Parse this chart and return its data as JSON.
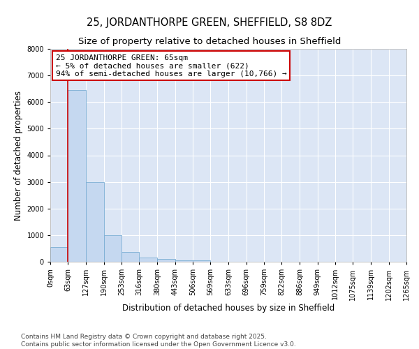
{
  "title1": "25, JORDANTHORPE GREEN, SHEFFIELD, S8 8DZ",
  "title2": "Size of property relative to detached houses in Sheffield",
  "xlabel": "Distribution of detached houses by size in Sheffield",
  "ylabel": "Number of detached properties",
  "bin_labels": [
    "0sqm",
    "63sqm",
    "127sqm",
    "190sqm",
    "253sqm",
    "316sqm",
    "380sqm",
    "443sqm",
    "506sqm",
    "569sqm",
    "633sqm",
    "696sqm",
    "759sqm",
    "822sqm",
    "886sqm",
    "949sqm",
    "1012sqm",
    "1075sqm",
    "1139sqm",
    "1202sqm",
    "1265sqm"
  ],
  "bin_edges": [
    0,
    63,
    127,
    190,
    253,
    316,
    380,
    443,
    506,
    569,
    633,
    696,
    759,
    822,
    886,
    949,
    1012,
    1075,
    1139,
    1202,
    1265
  ],
  "bar_values": [
    550,
    6450,
    3000,
    1000,
    360,
    155,
    105,
    65,
    45,
    0,
    0,
    0,
    0,
    0,
    0,
    0,
    0,
    0,
    0,
    0
  ],
  "bar_color": "#c5d8f0",
  "bar_edge_color": "#7aadd4",
  "property_line_x": 63,
  "property_line_color": "#cc0000",
  "ylim": [
    0,
    8000
  ],
  "yticks": [
    0,
    1000,
    2000,
    3000,
    4000,
    5000,
    6000,
    7000,
    8000
  ],
  "annotation_text": "25 JORDANTHORPE GREEN: 65sqm\n← 5% of detached houses are smaller (622)\n94% of semi-detached houses are larger (10,766) →",
  "annotation_box_color": "#cc0000",
  "footnote": "Contains HM Land Registry data © Crown copyright and database right 2025.\nContains public sector information licensed under the Open Government Licence v3.0.",
  "plot_bg_color": "#dce6f5",
  "fig_bg_color": "#ffffff",
  "grid_color": "#ffffff",
  "title_fontsize": 10.5,
  "subtitle_fontsize": 9.5,
  "axis_label_fontsize": 8.5,
  "tick_fontsize": 7,
  "annotation_fontsize": 8,
  "footnote_fontsize": 6.5
}
